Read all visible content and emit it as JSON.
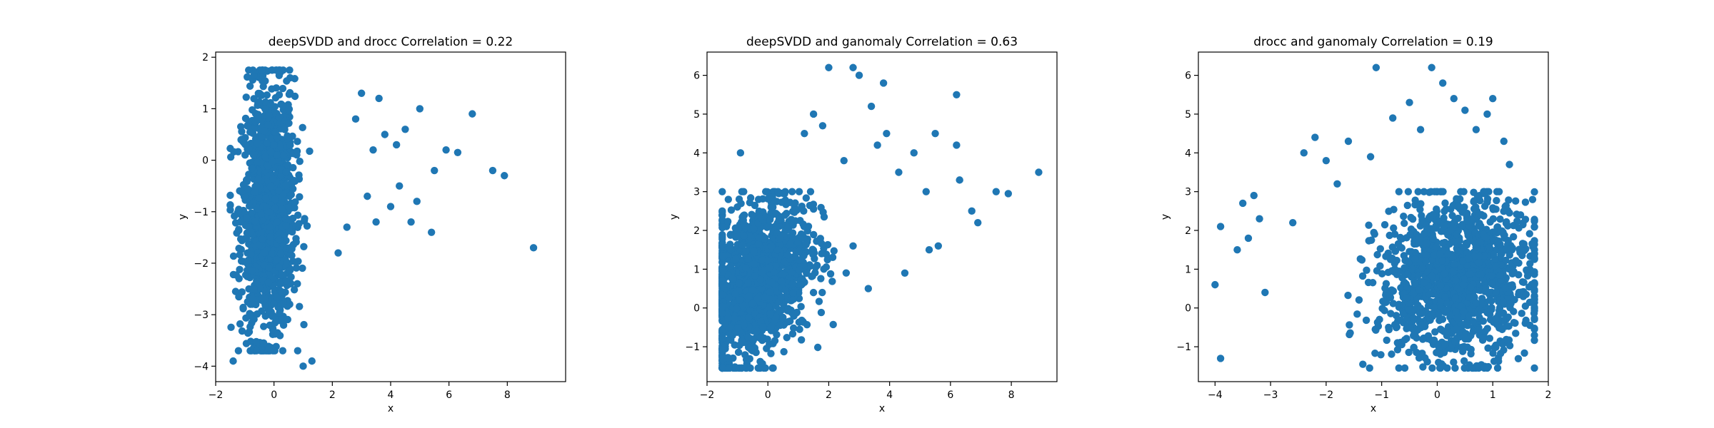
{
  "colors": {
    "point": "#1f77b4",
    "axis": "#000000",
    "background": "#ffffff"
  },
  "chart_data": [
    {
      "type": "scatter",
      "title": "deepSVDD and drocc Correlation = 0.22",
      "xlabel": "x",
      "ylabel": "y",
      "xlim": [
        -2,
        10
      ],
      "ylim": [
        -4.3,
        2.1
      ],
      "xticks": [
        -2,
        0,
        2,
        4,
        6,
        8
      ],
      "yticks": [
        -4,
        -3,
        -2,
        -1,
        0,
        1,
        2
      ],
      "grid": false,
      "correlation": 0.22,
      "dense_region": {
        "x_center": -0.2,
        "x_spread": 0.45,
        "x_min": -1.5,
        "x_max": 3.2,
        "y_min": -3.7,
        "y_max": 1.75
      },
      "points": [
        [
          8.9,
          -1.7
        ],
        [
          7.9,
          -0.3
        ],
        [
          7.5,
          -0.2
        ],
        [
          6.8,
          0.9
        ],
        [
          6.3,
          0.15
        ],
        [
          5.9,
          0.2
        ],
        [
          5.5,
          -0.2
        ],
        [
          5.4,
          -1.4
        ],
        [
          5.0,
          1.0
        ],
        [
          4.9,
          -0.8
        ],
        [
          4.7,
          -1.2
        ],
        [
          4.5,
          0.6
        ],
        [
          4.3,
          -0.5
        ],
        [
          4.2,
          0.3
        ],
        [
          4.0,
          -0.9
        ],
        [
          3.8,
          0.5
        ],
        [
          3.6,
          1.2
        ],
        [
          3.5,
          -1.2
        ],
        [
          3.4,
          0.2
        ],
        [
          3.2,
          -0.7
        ],
        [
          3.0,
          1.3
        ],
        [
          1.0,
          -4.0
        ],
        [
          1.3,
          -3.9
        ],
        [
          -1.4,
          -3.9
        ],
        [
          -0.6,
          -3.7
        ],
        [
          0.3,
          -2.8
        ],
        [
          0.8,
          -2.4
        ],
        [
          2.5,
          -1.3
        ],
        [
          2.2,
          -1.8
        ],
        [
          2.8,
          0.8
        ]
      ]
    },
    {
      "type": "scatter",
      "title": "deepSVDD and ganomaly Correlation = 0.63",
      "xlabel": "x",
      "ylabel": "y",
      "xlim": [
        -2,
        9.5
      ],
      "ylim": [
        -1.9,
        6.6
      ],
      "xticks": [
        -2,
        0,
        2,
        4,
        6,
        8
      ],
      "yticks": [
        -1,
        0,
        1,
        2,
        3,
        4,
        5,
        6
      ],
      "grid": false,
      "correlation": 0.63,
      "dense_region": {
        "x_center": -0.4,
        "x_spread": 0.9,
        "x_min": -1.5,
        "x_max": 3.3,
        "y_min": -1.55,
        "y_max": 3.0
      },
      "points": [
        [
          8.9,
          3.5
        ],
        [
          7.9,
          2.95
        ],
        [
          7.5,
          3.0
        ],
        [
          6.9,
          2.2
        ],
        [
          6.7,
          2.5
        ],
        [
          6.3,
          3.3
        ],
        [
          6.2,
          4.2
        ],
        [
          6.2,
          5.5
        ],
        [
          5.6,
          1.6
        ],
        [
          5.5,
          4.5
        ],
        [
          5.2,
          3.0
        ],
        [
          4.8,
          4.0
        ],
        [
          4.3,
          3.5
        ],
        [
          3.9,
          4.5
        ],
        [
          3.8,
          5.8
        ],
        [
          3.6,
          4.2
        ],
        [
          3.4,
          5.2
        ],
        [
          3.0,
          6.0
        ],
        [
          2.8,
          6.2
        ],
        [
          2.5,
          3.8
        ],
        [
          2.0,
          6.2
        ],
        [
          1.8,
          4.7
        ],
        [
          1.5,
          5.0
        ],
        [
          1.2,
          4.5
        ],
        [
          -0.9,
          4.0
        ],
        [
          -1.3,
          2.8
        ],
        [
          4.5,
          0.9
        ],
        [
          5.3,
          1.5
        ],
        [
          3.3,
          0.5
        ],
        [
          2.8,
          1.6
        ]
      ]
    },
    {
      "type": "scatter",
      "title": "drocc and ganomaly Correlation = 0.19",
      "xlabel": "x",
      "ylabel": "y",
      "xlim": [
        -4.3,
        2.0
      ],
      "ylim": [
        -1.9,
        6.6
      ],
      "xticks": [
        -4,
        -3,
        -2,
        -1,
        0,
        1,
        2
      ],
      "yticks": [
        -1,
        0,
        1,
        2,
        3,
        4,
        5,
        6
      ],
      "grid": false,
      "correlation": 0.19,
      "dense_region": {
        "x_center": 0.35,
        "x_spread": 0.7,
        "x_min": -3.3,
        "x_max": 1.75,
        "y_min": -1.55,
        "y_max": 3.0
      },
      "points": [
        [
          -4.0,
          0.6
        ],
        [
          -3.9,
          2.1
        ],
        [
          -3.9,
          -1.3
        ],
        [
          -3.6,
          1.5
        ],
        [
          -3.5,
          2.7
        ],
        [
          -3.4,
          1.8
        ],
        [
          -3.3,
          2.9
        ],
        [
          -3.2,
          2.3
        ],
        [
          -3.1,
          0.4
        ],
        [
          -2.6,
          2.2
        ],
        [
          -2.4,
          4.0
        ],
        [
          -2.2,
          4.4
        ],
        [
          -2.0,
          3.8
        ],
        [
          -1.8,
          3.2
        ],
        [
          -1.6,
          4.3
        ],
        [
          -1.2,
          3.9
        ],
        [
          -1.1,
          6.2
        ],
        [
          -0.8,
          4.9
        ],
        [
          -0.5,
          5.3
        ],
        [
          -0.3,
          4.6
        ],
        [
          -0.1,
          6.2
        ],
        [
          0.1,
          5.8
        ],
        [
          0.3,
          5.4
        ],
        [
          0.5,
          5.1
        ],
        [
          0.7,
          4.6
        ],
        [
          0.9,
          5.0
        ],
        [
          1.0,
          5.4
        ],
        [
          1.2,
          4.3
        ],
        [
          1.3,
          3.7
        ],
        [
          1.5,
          2.4
        ]
      ]
    }
  ]
}
